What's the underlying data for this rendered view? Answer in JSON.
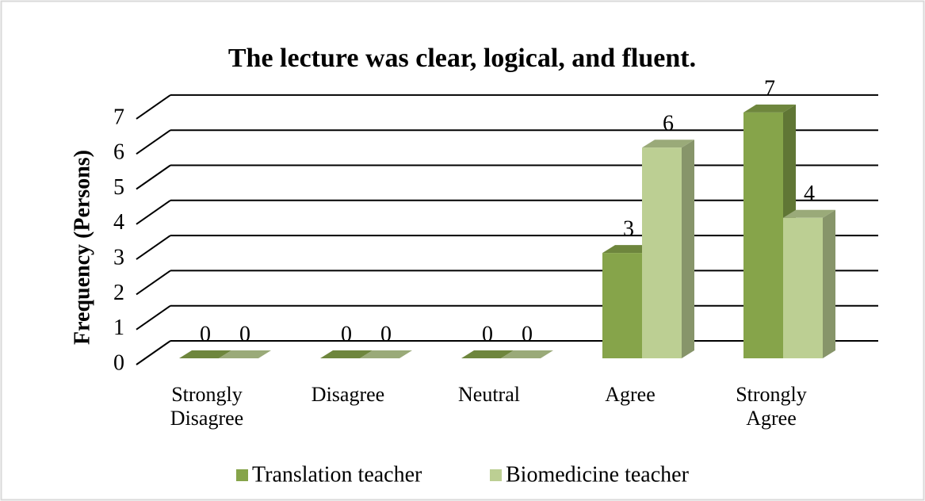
{
  "chart_data": {
    "type": "bar3d",
    "title": "The lecture was clear, logical, and fluent.",
    "ylabel": "Frequency (Persons)",
    "categories": [
      "Strongly Disagree",
      "Disagree",
      "Neutral",
      "Agree",
      "Strongly Agree"
    ],
    "series": [
      {
        "name": "Translation teacher",
        "color": "#86a44a",
        "values": [
          0,
          0,
          0,
          3,
          7
        ]
      },
      {
        "name": "Biomedicine teacher",
        "color": "#bccf93",
        "values": [
          0,
          0,
          0,
          6,
          4
        ]
      }
    ],
    "ylim": [
      0,
      7
    ],
    "yticks": [
      0,
      1,
      2,
      3,
      4,
      5,
      6,
      7
    ],
    "grid": true,
    "legend": "bottom"
  }
}
